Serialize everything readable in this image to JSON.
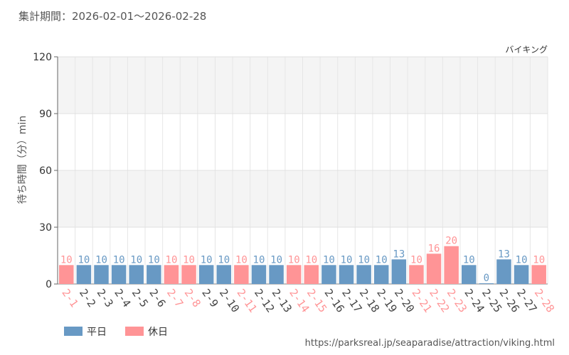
{
  "header": {
    "period": "集計期間：2026-02-01～2026-02-28"
  },
  "footer": {
    "url": "https://parksreal.jp/seaparadise/attraction/viking.html"
  },
  "colors": {
    "weekday": "#6899c4",
    "holiday": "#ff9496"
  },
  "chart_data": {
    "type": "bar",
    "series_name": "バイキング",
    "ylabel": "待ち時間（分）min",
    "ylim": [
      0,
      120
    ],
    "yticks": [
      0,
      30,
      60,
      90,
      120
    ],
    "categories": [
      "2-1",
      "2-2",
      "2-3",
      "2-4",
      "2-5",
      "2-6",
      "2-7",
      "2-8",
      "2-9",
      "2-10",
      "2-11",
      "2-12",
      "2-13",
      "2-14",
      "2-15",
      "2-16",
      "2-17",
      "2-18",
      "2-19",
      "2-20",
      "2-21",
      "2-22",
      "2-23",
      "2-24",
      "2-25",
      "2-26",
      "2-27",
      "2-28"
    ],
    "values": [
      10,
      10,
      10,
      10,
      10,
      10,
      10,
      10,
      10,
      10,
      10,
      10,
      10,
      10,
      10,
      10,
      10,
      10,
      10,
      13,
      10,
      16,
      20,
      10,
      0,
      13,
      10,
      10
    ],
    "day_types": [
      "holiday",
      "weekday",
      "weekday",
      "weekday",
      "weekday",
      "weekday",
      "holiday",
      "holiday",
      "weekday",
      "weekday",
      "holiday",
      "weekday",
      "weekday",
      "holiday",
      "holiday",
      "weekday",
      "weekday",
      "weekday",
      "weekday",
      "weekday",
      "holiday",
      "holiday",
      "holiday",
      "weekday",
      "weekday",
      "weekday",
      "weekday",
      "holiday"
    ],
    "legend": [
      {
        "label": "平日",
        "type": "weekday"
      },
      {
        "label": "休日",
        "type": "holiday"
      }
    ]
  }
}
